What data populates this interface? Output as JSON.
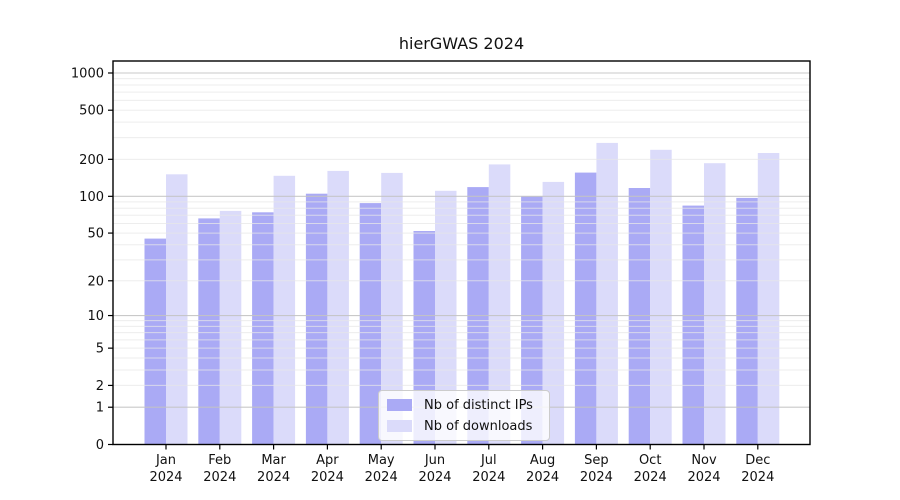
{
  "figure": {
    "title": "hierGWAS 2024"
  },
  "chart_data": {
    "type": "bar",
    "title": "hierGWAS 2024",
    "categories": [
      "Jan 2024",
      "Feb 2024",
      "Mar 2024",
      "Apr 2024",
      "May 2024",
      "Jun 2024",
      "Jul 2024",
      "Aug 2024",
      "Sep 2024",
      "Oct 2024",
      "Nov 2024",
      "Dec 2024"
    ],
    "series": [
      {
        "name": "Nb of distinct IPs",
        "color": "#aaaaf5",
        "values": [
          45,
          66,
          74,
          105,
          88,
          52,
          119,
          100,
          156,
          117,
          84,
          97
        ]
      },
      {
        "name": "Nb of downloads",
        "color": "#dbdbfa",
        "values": [
          151,
          76,
          147,
          161,
          155,
          111,
          182,
          131,
          272,
          239,
          186,
          225
        ]
      }
    ],
    "xlabel": "",
    "ylabel": "",
    "yscale": "log1p",
    "ylim": [
      0,
      1250
    ],
    "y_ticks": [
      0,
      1,
      2,
      5,
      10,
      20,
      50,
      100,
      200,
      500,
      1000
    ],
    "grid": true,
    "legend_position": "lower center",
    "colors": {
      "major_grid": "#c3c3c3",
      "minor_grid": "#e7e7e7",
      "axis": "#000000",
      "text": "#111111"
    }
  }
}
